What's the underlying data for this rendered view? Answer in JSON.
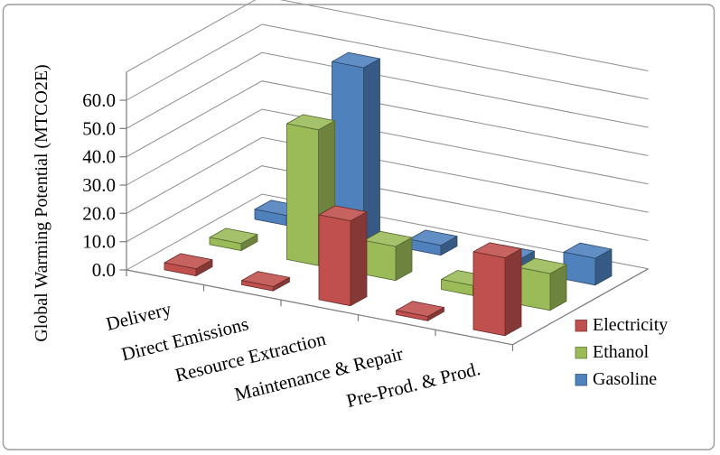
{
  "chart_data": {
    "type": "bar",
    "projection": "3d-column",
    "title": "",
    "ylabel": "Global Warming Potential (MTCO2E)",
    "xlabel": "",
    "categories": [
      "Delivery",
      "Direct Emissions",
      "Resource Extraction",
      "Maintenance & Repair",
      "Pre-Prod. & Prod."
    ],
    "series": [
      {
        "name": "Electricity",
        "color": "#C0504D",
        "values": [
          2.5,
          1.5,
          30,
          1.5,
          27.5
        ]
      },
      {
        "name": "Ethanol",
        "color": "#9BBB59",
        "values": [
          2.5,
          48,
          12,
          3.5,
          13
        ]
      },
      {
        "name": "Gasoline",
        "color": "#4F81BD",
        "values": [
          3.5,
          61,
          3.5,
          3.5,
          9.5
        ]
      }
    ],
    "y_ticks": [
      "0.0",
      "10.0",
      "20.0",
      "30.0",
      "40.0",
      "50.0",
      "60.0"
    ],
    "ylim": [
      0,
      70
    ],
    "y_major_unit": 10,
    "grid": true,
    "legend": {
      "position": "right",
      "items": [
        "Electricity",
        "Ethanol",
        "Gasoline"
      ]
    },
    "style": {
      "background": "#FFFFFF",
      "grid_color": "#8C8C8C",
      "axis_color": "#7A7A7A",
      "text_color": "#000000",
      "border_color": "#9B9B9B"
    }
  }
}
